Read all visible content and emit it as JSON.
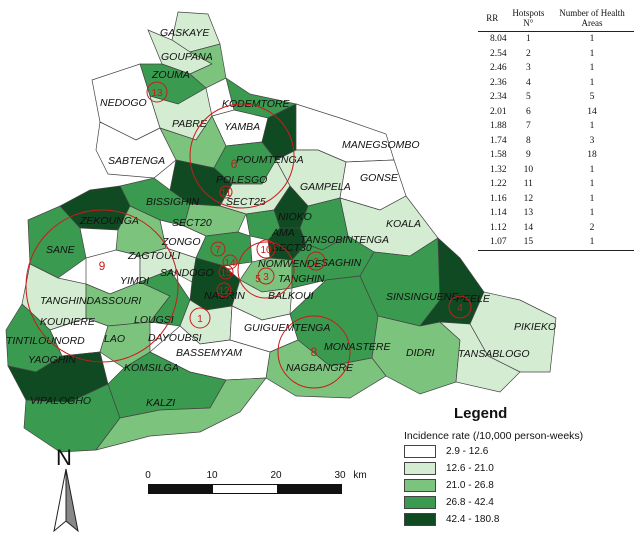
{
  "table": {
    "headers": [
      "RR",
      "Hotspots N°",
      "Number of Health Areas"
    ],
    "rows": [
      [
        "8.04",
        "1",
        "1"
      ],
      [
        "2.54",
        "2",
        "1"
      ],
      [
        "2.46",
        "3",
        "1"
      ],
      [
        "2.36",
        "4",
        "1"
      ],
      [
        "2.34",
        "5",
        "5"
      ],
      [
        "2.01",
        "6",
        "14"
      ],
      [
        "1.88",
        "7",
        "1"
      ],
      [
        "1.74",
        "8",
        "3"
      ],
      [
        "1.58",
        "9",
        "18"
      ],
      [
        "1.32",
        "10",
        "1"
      ],
      [
        "1.22",
        "11",
        "1"
      ],
      [
        "1.16",
        "12",
        "1"
      ],
      [
        "1.14",
        "13",
        "1"
      ],
      [
        "1.12",
        "14",
        "2"
      ],
      [
        "1.07",
        "15",
        "1"
      ]
    ]
  },
  "legend": {
    "title": "Legend",
    "subtitle": "Incidence rate (/10,000 person-weeks)",
    "classes": [
      {
        "label": "2.9 - 12.6",
        "color": "#ffffff"
      },
      {
        "label": "12.6 - 21.0",
        "color": "#d4ecd2"
      },
      {
        "label": "21.0 - 26.8",
        "color": "#7cc47d"
      },
      {
        "label": "26.8 - 42.4",
        "color": "#3a9a4f"
      },
      {
        "label": "42.4 - 180.8",
        "color": "#0f4a22"
      }
    ]
  },
  "scale": {
    "ticks": [
      "0",
      "10",
      "20",
      "30"
    ],
    "unit": "km"
  },
  "north": {
    "label": "N"
  },
  "areas": [
    "GASKAYE",
    "GOUPANA",
    "ZOUMA",
    "NEDOGO",
    "PABRE",
    "KODEMTORE",
    "YAMBA",
    "SABTENGA",
    "POUMTENGA",
    "POLESGO",
    "MANEGSOMBO",
    "GONSE",
    "GAMPELA",
    "BISSIGHIN",
    "SECT25",
    "SECT20",
    "ZEKOUNGA",
    "NIOKO",
    "AMA",
    "KOALA",
    "TANSOBINTENGA",
    "SANE",
    "ZAGTOULI",
    "ZONGO",
    "SECT30",
    "SAGHIN",
    "YIMDI",
    "SANDOGO",
    "NOMWENDE",
    "TANGHIN",
    "BALKOUI",
    "SINSINGUENE",
    "PEELE",
    "TANGHINDASSOURI",
    "NAGRIN",
    "KOUDIERE",
    "LOUGSI",
    "GUIGUEMTENGA",
    "PIKIEKO",
    "TINTILOUNORD",
    "LAO",
    "DAYOUBSI",
    "BASSEMYAM",
    "MONASTERE",
    "DIDRI",
    "TANSABLOGO",
    "YAOGHIN",
    "NAGBANGRE",
    "KOMSILGA",
    "VIPALOGHO",
    "KALZI"
  ],
  "hotspots": [
    "1",
    "2",
    "3",
    "4",
    "5",
    "6",
    "7",
    "8",
    "9",
    "10",
    "11",
    "12",
    "13",
    "14",
    "15"
  ]
}
